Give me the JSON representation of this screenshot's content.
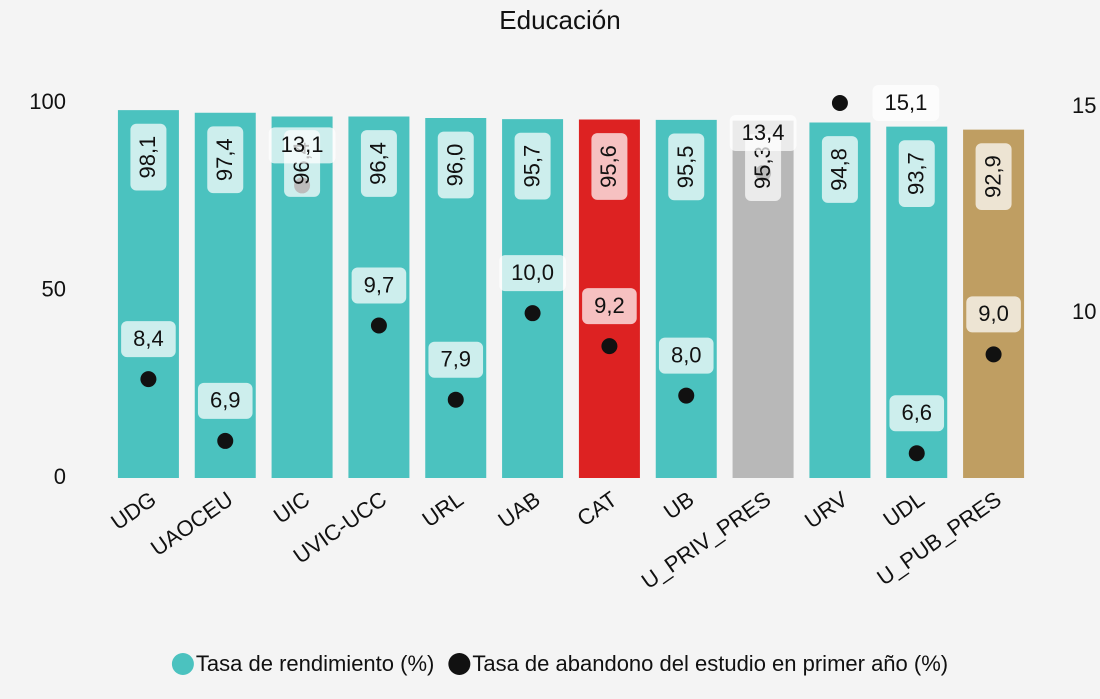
{
  "chart_data": {
    "type": "bar",
    "title": "Educación",
    "categories": [
      "UDG",
      "UAOCEU",
      "UIC",
      "UVIC-UCC",
      "URL",
      "UAB",
      "CAT",
      "UB",
      "U_PRIV_PRES",
      "URV",
      "UDL",
      "U_PUB_PRES"
    ],
    "series": [
      {
        "name": "Tasa de rendimiento (%)",
        "type": "bar",
        "color": "#4bc2bf",
        "colors": [
          "#4bc2bf",
          "#4bc2bf",
          "#4bc2bf",
          "#4bc2bf",
          "#4bc2bf",
          "#4bc2bf",
          "#dd2222",
          "#4bc2bf",
          "#b8b8b8",
          "#4bc2bf",
          "#4bc2bf",
          "#bf9e62"
        ],
        "values": [
          98.1,
          97.4,
          96.4,
          96.4,
          96.0,
          95.7,
          95.6,
          95.5,
          95.3,
          94.8,
          93.7,
          92.9
        ],
        "value_labels": [
          "98,1",
          "97,4",
          "96,4",
          "96,4",
          "96,0",
          "95,7",
          "95,6",
          "95,5",
          "95,3",
          "94,8",
          "93,7",
          "92,9"
        ]
      },
      {
        "name": "Tasa de abandono del estudio en primer año (%)",
        "type": "scatter",
        "axis": "y2",
        "color": "#111111",
        "values": [
          8.4,
          6.9,
          13.1,
          9.7,
          7.9,
          10.0,
          9.2,
          8.0,
          13.4,
          15.1,
          6.6,
          9.0
        ],
        "value_labels": [
          "8,4",
          "6,9",
          "13,1",
          "9,7",
          "7,9",
          "10,0",
          "9,2",
          "8,0",
          "13,4",
          "15,1",
          "6,6",
          "9,0"
        ]
      }
    ],
    "ylim": [
      0,
      100
    ],
    "yticks": [
      0,
      50,
      100
    ],
    "y2lim": [
      6,
      15.1
    ],
    "y2ticks": [
      10,
      15
    ],
    "legend": "bottom"
  }
}
